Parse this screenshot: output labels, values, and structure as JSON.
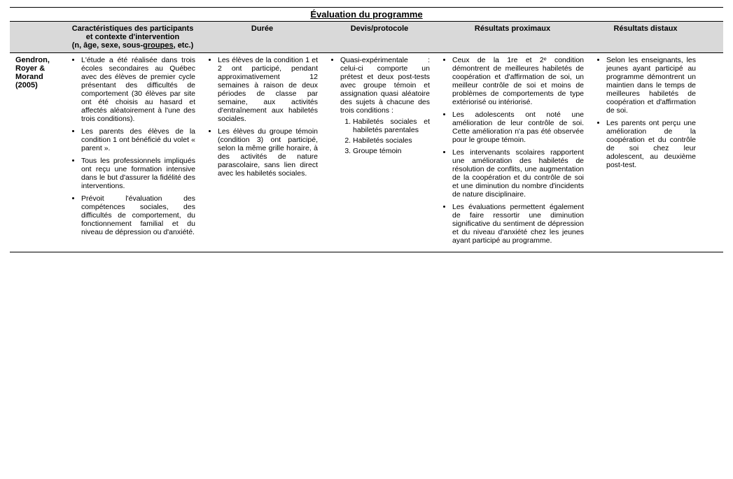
{
  "title": "Évaluation du programme",
  "headers": {
    "study_blank": "",
    "characteristics": "Caractéristiques des participants et contexte d'intervention",
    "characteristics_sub": "(n, âge, sexe, sous-groupes, etc.)",
    "duree": "Durée",
    "devis": "Devis/protocole",
    "proximal": "Résultats proximaux",
    "distal": "Résultats distaux"
  },
  "row": {
    "study": "Gendron, Royer & Morand (2005)",
    "char": [
      "L'étude a été réalisée dans trois écoles secondaires au Québec avec des élèves de premier cycle présentant des difficultés de comportement (30 élèves par site ont été choisis au hasard et affectés aléatoirement à l'une des trois conditions).",
      "Les parents des élèves de la condition 1 ont bénéficié du volet « parent ».",
      "Tous les professionnels impliqués ont reçu une formation intensive dans le but d'assurer la fidélité des interventions.",
      "Prévoit l'évaluation des compétences sociales, des difficultés de comportement, du fonctionnement familial et du niveau de dépression ou d'anxiété."
    ],
    "duree": [
      "Les élèves de la condition 1 et 2 ont participé, pendant approximativement 12 semaines à raison de deux périodes de classe par semaine, aux activités d'entraînement aux habiletés sociales.",
      "Les élèves du groupe témoin (condition 3) ont participé, selon la même grille horaire, à des activités de nature parascolaire, sans lien direct avec les habiletés sociales."
    ],
    "devis_intro": "Quasi-expérimentale : celui-ci comporte un prétest et deux post-tests avec groupe témoin et assignation quasi aléatoire des sujets à chacune des trois conditions :",
    "devis_conditions": [
      "Habiletés sociales et habiletés parentales",
      "Habiletés sociales",
      "Groupe témoin"
    ],
    "prox": [
      "Ceux de la 1re et 2ᵉ condition démontrent de meilleures habiletés de coopération et d'affirmation de soi, un meilleur contrôle de soi et moins de problèmes de comportements de type extériorisé ou intériorisé.",
      "Les adolescents ont noté une amélioration de leur contrôle de soi. Cette amélioration n'a pas été observée pour le groupe témoin.",
      "Les intervenants scolaires rapportent une amélioration des habiletés de résolution de conflits, une augmentation de la coopération et du contrôle de soi et une diminution du nombre d'incidents de nature disciplinaire.",
      "Les évaluations permettent également de faire ressortir une diminution significative du sentiment de dépression et du niveau d'anxiété chez les jeunes ayant participé au programme."
    ],
    "dist": [
      "Selon les enseignants, les jeunes ayant participé au programme démontrent un maintien dans le temps de meilleures habiletés de coopération et d'affirmation de soi.",
      "Les parents ont perçu une amélioration de la coopération et du contrôle de soi chez leur adolescent, au deuxième post-test."
    ]
  }
}
